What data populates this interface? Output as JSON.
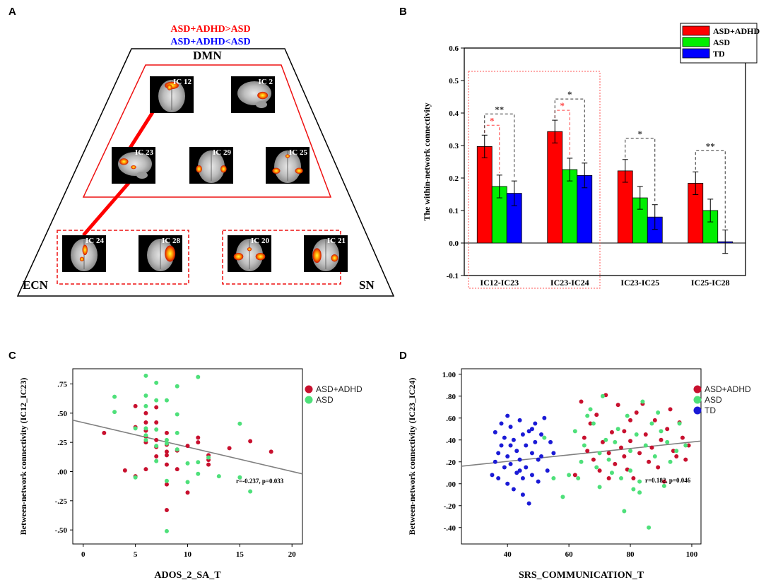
{
  "panels": {
    "a": "A",
    "b": "B",
    "c": "C",
    "d": "D"
  },
  "panel_a": {
    "contrast_up": "ASD+ADHD>ASD",
    "contrast_down": "ASD+ADHD<ASD",
    "contrast_up_color": "#ff0000",
    "contrast_down_color": "#0000ff",
    "networks": {
      "dmn": "DMN",
      "ecn": "ECN",
      "sn": "SN"
    },
    "components": [
      "IC 12",
      "IC 2",
      "IC 23",
      "IC 29",
      "IC 25",
      "IC 24",
      "IC 28",
      "IC 20",
      "IC 21"
    ]
  },
  "colors": {
    "asd_adhd": "#ff0000",
    "asd": "#00ee00",
    "td": "#0000ff",
    "scatter_asd_adhd": "#c8102e",
    "scatter_asd": "#4ee07a",
    "scatter_td": "#1a1ad6",
    "fit_line": "#808080"
  },
  "chart_data": [
    {
      "id": "B",
      "type": "bar",
      "ylabel": "The within-network connectivity",
      "ylim": [
        -0.1,
        0.6
      ],
      "yticks": [
        "-0.1",
        "0.0",
        "0.1",
        "0.2",
        "0.3",
        "0.4",
        "0.5",
        "0.6"
      ],
      "categories": [
        "IC12-IC23",
        "IC23-IC24",
        "IC23-IC25",
        "IC25-IC28"
      ],
      "legend": [
        "ASD+ADHD",
        "ASD",
        "TD"
      ],
      "series": [
        {
          "name": "ASD+ADHD",
          "values": [
            0.297,
            0.343,
            0.222,
            0.184
          ],
          "errors": [
            0.035,
            0.035,
            0.035,
            0.035
          ]
        },
        {
          "name": "ASD",
          "values": [
            0.174,
            0.226,
            0.139,
            0.1
          ],
          "errors": [
            0.035,
            0.035,
            0.035,
            0.035
          ]
        },
        {
          "name": "TD",
          "values": [
            0.153,
            0.208,
            0.08,
            0.004
          ],
          "errors": [
            0.038,
            0.038,
            0.038,
            0.036
          ]
        }
      ],
      "significance": [
        {
          "category": 0,
          "pair": "ASD+ADHD-ASD",
          "label": "*",
          "color": "#ff4444"
        },
        {
          "category": 0,
          "pair": "ASD+ADHD-TD",
          "label": "**",
          "color": "#333333"
        },
        {
          "category": 1,
          "pair": "ASD+ADHD-ASD",
          "label": "*",
          "color": "#ff4444"
        },
        {
          "category": 1,
          "pair": "ASD+ADHD-TD",
          "label": "*",
          "color": "#333333"
        },
        {
          "category": 2,
          "pair": "ASD+ADHD-TD",
          "label": "*",
          "color": "#333333"
        },
        {
          "category": 3,
          "pair": "ASD+ADHD-TD",
          "label": "**",
          "color": "#333333"
        }
      ]
    },
    {
      "id": "C",
      "type": "scatter",
      "xlabel": "ADOS_2_SA_T",
      "ylabel": "Between-network connectivity  (IC12_IC23)",
      "xlim": [
        -1,
        21
      ],
      "ylim": [
        -0.62,
        0.88
      ],
      "xticks": [
        "0",
        "5",
        "10",
        "15",
        "20"
      ],
      "yticks": [
        ".75",
        ".50",
        ".25",
        ".00",
        "-.25",
        "-.50"
      ],
      "legend": [
        "ASD+ADHD",
        "ASD"
      ],
      "stat": "r=-0.237, p=0.033",
      "fit": {
        "x": [
          -1,
          21
        ],
        "y": [
          0.44,
          -0.02
        ]
      },
      "series": [
        {
          "name": "ASD+ADHD",
          "x": [
            2,
            4,
            5,
            5,
            5,
            6,
            6,
            6,
            6,
            6,
            6,
            7,
            7,
            7,
            7,
            7,
            8,
            8,
            8,
            8,
            8,
            8,
            8,
            9,
            9,
            10,
            10,
            11,
            11,
            12,
            12,
            12,
            14,
            16,
            18
          ],
          "y": [
            0.33,
            0.01,
            0.56,
            0.38,
            -0.04,
            0.5,
            0.42,
            0.35,
            0.3,
            0.25,
            0.02,
            0.55,
            0.42,
            0.27,
            0.21,
            0.13,
            0.33,
            0.23,
            0.17,
            0.14,
            0.06,
            -0.11,
            -0.33,
            0.18,
            0.02,
            0.22,
            -0.18,
            0.29,
            0.25,
            0.14,
            0.1,
            0.06,
            0.2,
            0.26,
            0.17
          ]
        },
        {
          "name": "ASD",
          "x": [
            3,
            3,
            5,
            5,
            6,
            6,
            6,
            6,
            6,
            6,
            7,
            7,
            7,
            7,
            7,
            8,
            8,
            8,
            8,
            8,
            9,
            9,
            9,
            9,
            10,
            10,
            11,
            11,
            11,
            12,
            13,
            15,
            15,
            16
          ],
          "y": [
            0.64,
            0.51,
            0.37,
            -0.05,
            0.82,
            0.65,
            0.56,
            0.37,
            0.31,
            0.27,
            0.76,
            0.61,
            0.36,
            0.22,
            0.09,
            0.61,
            0.27,
            0.24,
            -0.08,
            -0.51,
            0.73,
            0.49,
            0.33,
            0.19,
            0.07,
            -0.09,
            0.81,
            0.08,
            -0.02,
            0.12,
            -0.04,
            0.41,
            -0.05,
            -0.17
          ]
        }
      ]
    },
    {
      "id": "D",
      "type": "scatter",
      "xlabel": "SRS_COMMUNICATION_T",
      "ylabel": "Between-network connectivity  (IC23_IC24)",
      "xlim": [
        25,
        103
      ],
      "ylim": [
        -0.55,
        1.05
      ],
      "xticks": [
        "40",
        "60",
        "80",
        "100"
      ],
      "yticks": [
        "1.00",
        ".80",
        ".60",
        ".40",
        ".20",
        ".00",
        "-.20",
        "-.40"
      ],
      "legend": [
        "ASD+ADHD",
        "ASD",
        "TD"
      ],
      "stat": "r=0.182, p=0.046",
      "fit": {
        "x": [
          25,
          103
        ],
        "y": [
          0.16,
          0.39
        ]
      },
      "series": [
        {
          "name": "ASD+ADHD",
          "x": [
            62,
            64,
            65,
            66,
            67,
            68,
            69,
            70,
            71,
            72,
            73,
            73,
            74,
            75,
            76,
            77,
            78,
            78,
            79,
            80,
            80,
            81,
            82,
            83,
            84,
            85,
            86,
            87,
            88,
            89,
            90,
            91,
            92,
            93,
            94,
            95,
            96,
            97,
            98,
            99
          ],
          "y": [
            0.08,
            0.75,
            0.42,
            0.3,
            0.55,
            0.22,
            0.63,
            0.12,
            0.38,
            0.81,
            0.28,
            0.05,
            0.47,
            0.18,
            0.72,
            0.33,
            0.48,
            0.25,
            0.13,
            0.58,
            0.39,
            0.05,
            0.65,
            0.28,
            0.73,
            0.45,
            0.2,
            0.33,
            0.58,
            0.15,
            0.4,
            0.02,
            0.5,
            0.68,
            0.3,
            0.25,
            0.56,
            0.42,
            0.22,
            0.35
          ]
        },
        {
          "name": "ASD",
          "x": [
            52,
            55,
            58,
            60,
            62,
            63,
            64,
            65,
            66,
            67,
            68,
            69,
            70,
            70,
            71,
            72,
            73,
            74,
            75,
            76,
            77,
            78,
            79,
            80,
            80,
            81,
            82,
            83,
            83,
            84,
            85,
            86,
            87,
            88,
            89,
            90,
            91,
            92,
            93,
            95,
            96,
            98
          ],
          "y": [
            0.42,
            0.05,
            -0.12,
            0.08,
            0.48,
            0.05,
            0.2,
            0.35,
            0.62,
            0.68,
            0.55,
            0.15,
            0.28,
            -0.03,
            0.8,
            0.4,
            0.22,
            0.1,
            0.38,
            0.5,
            0.05,
            -0.25,
            0.62,
            0.3,
            0.12,
            -0.05,
            0.45,
            0.02,
            -0.08,
            0.75,
            0.35,
            -0.4,
            0.55,
            0.25,
            0.65,
            0.48,
            -0.02,
            0.38,
            0.2,
            0.3,
            0.55,
            0.35
          ]
        },
        {
          "name": "TD",
          "x": [
            35,
            36,
            37,
            37,
            38,
            38,
            39,
            39,
            40,
            40,
            40,
            41,
            41,
            42,
            42,
            43,
            43,
            44,
            44,
            45,
            45,
            45,
            46,
            46,
            47,
            47,
            48,
            48,
            49,
            49,
            50,
            50,
            51,
            52,
            53,
            54,
            55,
            36,
            41,
            44,
            48,
            51
          ],
          "y": [
            0.08,
            0.47,
            0.28,
            0.05,
            0.55,
            0.35,
            0.15,
            0.42,
            0.62,
            0.25,
            0.0,
            0.52,
            0.18,
            0.4,
            -0.05,
            0.3,
            0.1,
            0.58,
            0.22,
            0.45,
            0.05,
            -0.1,
            0.35,
            0.15,
            0.48,
            -0.18,
            0.28,
            0.08,
            0.55,
            0.38,
            0.22,
            0.02,
            0.45,
            0.6,
            0.12,
            0.38,
            0.28,
            0.2,
            0.35,
            0.12,
            0.5,
            0.25
          ]
        }
      ]
    }
  ]
}
